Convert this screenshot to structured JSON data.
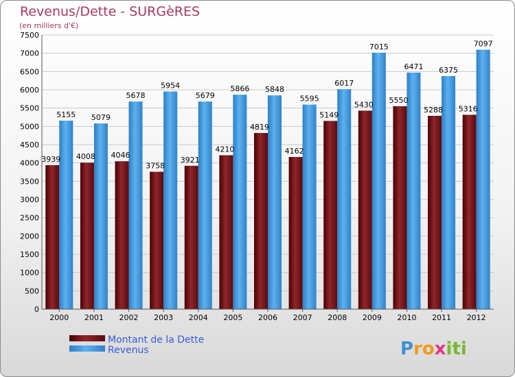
{
  "chart_data": {
    "type": "bar",
    "title": "Revenus/Dette - SURGèRES",
    "subtitle": "(en milliers d'€)",
    "categories": [
      "2000",
      "2001",
      "2002",
      "2003",
      "2004",
      "2005",
      "2006",
      "2007",
      "2008",
      "2009",
      "2010",
      "2011",
      "2012"
    ],
    "series": [
      {
        "name": "Montant de la Dette",
        "color": "#7a1418",
        "values": [
          3939,
          4008,
          4046,
          3758,
          3921,
          4210,
          4819,
          4162,
          5149,
          5430,
          5550,
          5288,
          5316
        ]
      },
      {
        "name": "Revenus",
        "color": "#4a9ee0",
        "values": [
          5155,
          5079,
          5678,
          5954,
          5679,
          5866,
          5848,
          5595,
          6017,
          7015,
          6471,
          6375,
          7097
        ]
      }
    ],
    "data_labels": [
      [
        "3939",
        "4008",
        "4046",
        "3758",
        "3921",
        "4210",
        "4819",
        "4162",
        "5149",
        "5430",
        "5550",
        "5288",
        "5316"
      ],
      [
        "5155",
        "5079",
        "5678",
        "5954",
        "5679",
        "5866",
        "5848",
        "5595",
        "6017",
        "7015",
        "6471",
        "6375",
        "7097"
      ]
    ],
    "ylim": [
      0,
      7500
    ],
    "yticks": [
      "0",
      "500",
      "1000",
      "1500",
      "2000",
      "2500",
      "3000",
      "3500",
      "4000",
      "4500",
      "5000",
      "5500",
      "6000",
      "6500",
      "7000",
      "7500"
    ],
    "grid": true,
    "legend": "bottom-left"
  },
  "logo": {
    "letters": [
      "P",
      "r",
      "o",
      "x",
      "i",
      "t",
      "i"
    ],
    "colors": [
      "#3f8fd6",
      "#f09a1e",
      "#f09a1e",
      "#e0368d",
      "#7ab82e",
      "#7ab82e",
      "#7ab82e"
    ]
  }
}
